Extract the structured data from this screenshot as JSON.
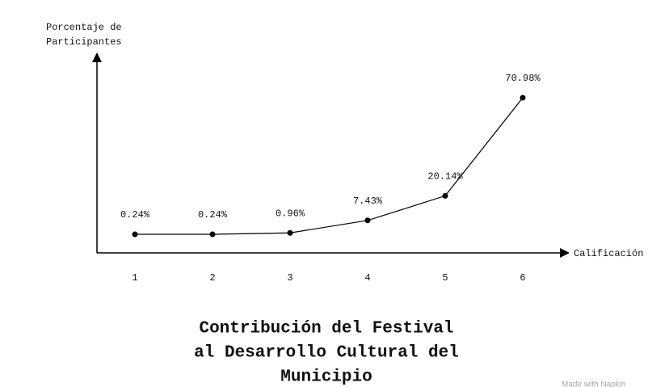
{
  "chart_data": {
    "type": "line",
    "title": [
      "Contribución del Festival",
      "al Desarrollo Cultural del",
      "Municipio"
    ],
    "y_label": [
      "Porcentaje de",
      "Participantes"
    ],
    "x_label": "Calificación",
    "categories": [
      "1",
      "2",
      "3",
      "4",
      "5",
      "6"
    ],
    "values": [
      0.24,
      0.24,
      0.96,
      7.43,
      20.14,
      70.98
    ],
    "value_labels": [
      "0.24%",
      "0.24%",
      "0.96%",
      "7.43%",
      "20.14%",
      "70.98%"
    ],
    "color": "#000000",
    "ylim": [
      -9.4,
      92.3
    ],
    "watermark": "Made with Napkin"
  }
}
